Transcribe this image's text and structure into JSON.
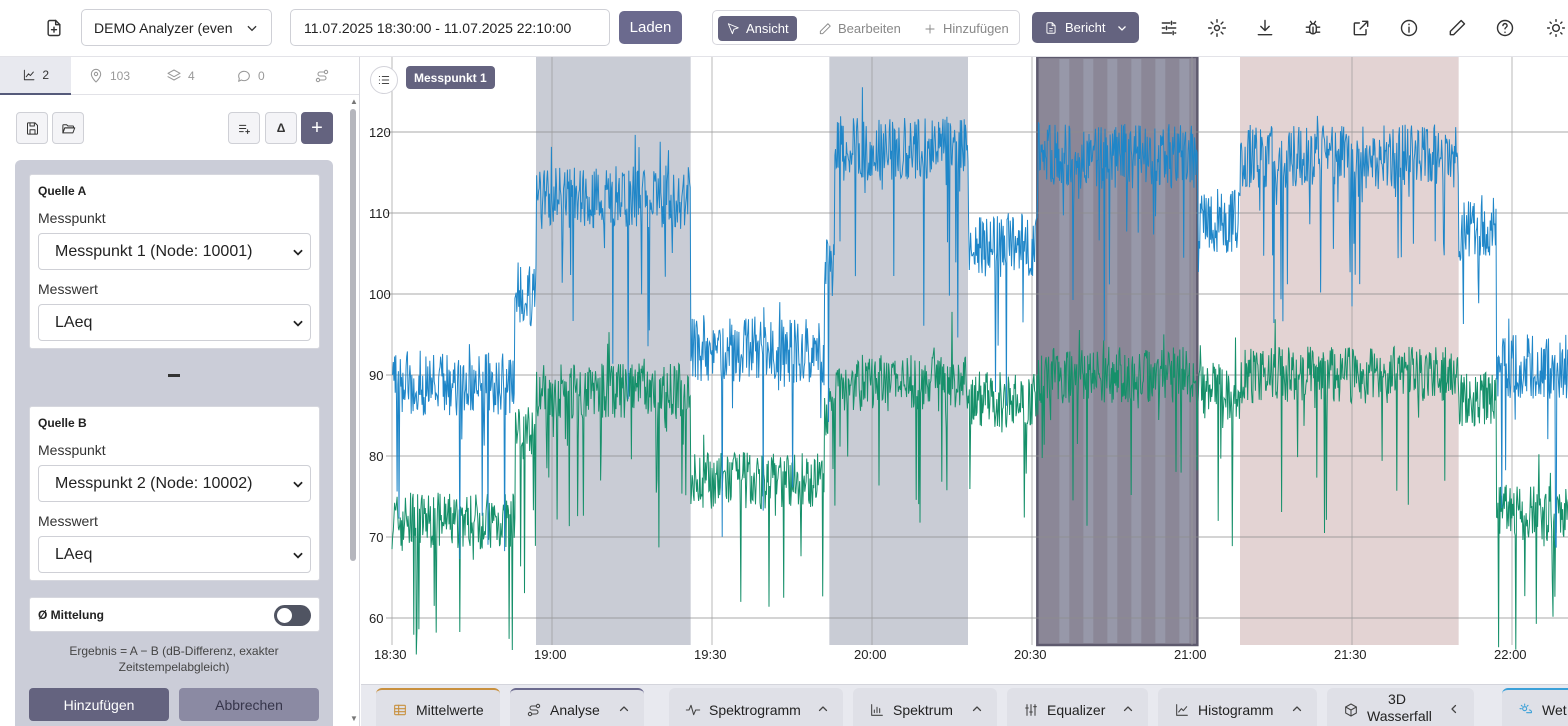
{
  "toolbar": {
    "analyzer_name": "DEMO Analyzer (even",
    "time_range": "11.07.2025 18:30:00 - 11.07.2025 22:10:00",
    "load_label": "Laden",
    "modes": {
      "view": "Ansicht",
      "edit": "Bearbeiten",
      "add": "Hinzufügen"
    },
    "report_label": "Bericht",
    "icons": [
      "sliders-icon",
      "settings-icon",
      "download-icon",
      "bug-icon",
      "external-link-icon",
      "info-icon",
      "pencil-icon",
      "help-icon",
      "sun-icon"
    ]
  },
  "left_panel": {
    "tabs": [
      {
        "icon": "chart-icon",
        "count": "2",
        "active": true
      },
      {
        "icon": "map-pin-icon",
        "count": "103",
        "active": false
      },
      {
        "icon": "layers-icon",
        "count": "4",
        "active": false
      },
      {
        "icon": "comment-icon",
        "count": "0",
        "active": false
      },
      {
        "icon": "route-icon",
        "count": "",
        "active": false
      }
    ],
    "delta_label": "Δ",
    "plus_label": "+",
    "source_a": {
      "title": "Quelle A",
      "point_label": "Messpunkt",
      "point_value": "Messpunkt 1 (Node: 10001)",
      "value_label": "Messwert",
      "value_value": "LAeq"
    },
    "source_b": {
      "title": "Quelle B",
      "point_label": "Messpunkt",
      "point_value": "Messpunkt 2 (Node: 10002)",
      "value_label": "Messwert",
      "value_value": "LAeq"
    },
    "averaging_label": "Ø Mittelung",
    "averaging_on": false,
    "result_note_line1": "Ergebnis = A − B (dB-Differenz, exakter",
    "result_note_line2": "Zeitstempelabgleich)",
    "add_label": "Hinzufügen",
    "cancel_label": "Abbrechen"
  },
  "chart": {
    "series_tag": "Messpunkt 1"
  },
  "chart_data": {
    "type": "line",
    "x_ticks": [
      "18:30",
      "19:00",
      "19:30",
      "20:00",
      "20:30",
      "21:00",
      "21:30",
      "22:00"
    ],
    "y_ticks": [
      60,
      70,
      80,
      90,
      100,
      110,
      120
    ],
    "x_range": [
      "18:30",
      "22:12"
    ],
    "ylim": [
      56,
      130
    ],
    "grid": true,
    "series": [
      {
        "color": "#1f86c8"
      },
      {
        "color": "#16906a"
      }
    ],
    "regions": [
      {
        "start": "18:57",
        "end": "19:26",
        "color": "#c9ccd5",
        "kind": "shaded"
      },
      {
        "start": "19:52",
        "end": "20:18",
        "color": "#c9ccd5",
        "kind": "shaded"
      },
      {
        "start": "20:31",
        "end": "21:01",
        "color": "#7e7a8c",
        "kind": "selected"
      },
      {
        "start": "21:09",
        "end": "21:50",
        "color": "#e3d3d3",
        "kind": "shaded"
      }
    ],
    "levels": [
      {
        "start": "18:30",
        "end": "18:53",
        "blue": 89,
        "green": 72
      },
      {
        "start": "18:53",
        "end": "18:57",
        "blue": 100,
        "green": 83
      },
      {
        "start": "18:57",
        "end": "19:26",
        "blue": 112,
        "green": 88
      },
      {
        "start": "19:26",
        "end": "19:51",
        "blue": 93,
        "green": 77
      },
      {
        "start": "19:51",
        "end": "19:53",
        "blue": 103,
        "green": 85
      },
      {
        "start": "19:53",
        "end": "20:18",
        "blue": 118,
        "green": 89
      },
      {
        "start": "20:18",
        "end": "20:31",
        "blue": 106,
        "green": 87
      },
      {
        "start": "20:31",
        "end": "21:01",
        "blue": 117,
        "green": 90
      },
      {
        "start": "21:01",
        "end": "21:09",
        "blue": 109,
        "green": 88
      },
      {
        "start": "21:09",
        "end": "21:50",
        "blue": 117,
        "green": 90
      },
      {
        "start": "21:50",
        "end": "21:57",
        "blue": 108,
        "green": 87
      },
      {
        "start": "21:57",
        "end": "22:12",
        "blue": 91,
        "green": 73
      }
    ]
  },
  "bottom_tabs": [
    {
      "label": "Mittelwerte",
      "icon": "table-icon",
      "state": "mittel"
    },
    {
      "label": "Analyse",
      "icon": "route-icon",
      "state": "analyse"
    },
    {
      "label": "Spektrogramm",
      "icon": "wave-icon",
      "state": ""
    },
    {
      "label": "Spektrum",
      "icon": "bar-chart-icon",
      "state": ""
    },
    {
      "label": "Equalizer",
      "icon": "equalizer-icon",
      "state": ""
    },
    {
      "label": "Histogramm",
      "icon": "histogram-icon",
      "state": ""
    },
    {
      "label": "3D Wasserfall",
      "icon": "cube-icon",
      "state": ""
    },
    {
      "label": "Wet",
      "icon": "weather-icon",
      "state": "wet"
    }
  ]
}
